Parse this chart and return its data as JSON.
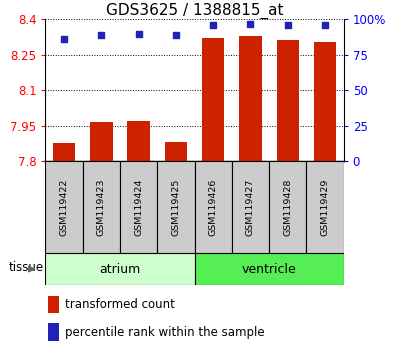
{
  "title": "GDS3625 / 1388815_at",
  "samples": [
    "GSM119422",
    "GSM119423",
    "GSM119424",
    "GSM119425",
    "GSM119426",
    "GSM119427",
    "GSM119428",
    "GSM119429"
  ],
  "bar_values": [
    7.875,
    7.965,
    7.97,
    7.882,
    8.32,
    8.33,
    8.315,
    8.305
  ],
  "percentile_values": [
    86,
    89,
    90,
    89,
    96,
    97,
    96,
    96
  ],
  "y_min": 7.8,
  "y_max": 8.4,
  "y_ticks": [
    7.8,
    7.95,
    8.1,
    8.25,
    8.4
  ],
  "y_tick_labels": [
    "7.8",
    "7.95",
    "8.1",
    "8.25",
    "8.4"
  ],
  "right_y_ticks": [
    0,
    25,
    50,
    75,
    100
  ],
  "right_y_labels": [
    "0",
    "25",
    "50",
    "75",
    "100%"
  ],
  "bar_color": "#cc2200",
  "dot_color": "#2222bb",
  "bar_width": 0.6,
  "tissue_groups": [
    {
      "label": "atrium",
      "start": 0,
      "end": 4,
      "color": "#ccffcc"
    },
    {
      "label": "ventricle",
      "start": 4,
      "end": 8,
      "color": "#55ee55"
    }
  ],
  "tissue_label": "tissue",
  "legend_bar_label": "transformed count",
  "legend_dot_label": "percentile rank within the sample",
  "background_color": "#ffffff",
  "plot_bg_color": "#ffffff",
  "grid_color": "#000000",
  "title_fontsize": 11,
  "tick_fontsize": 8.5,
  "sample_fontsize": 6.8
}
